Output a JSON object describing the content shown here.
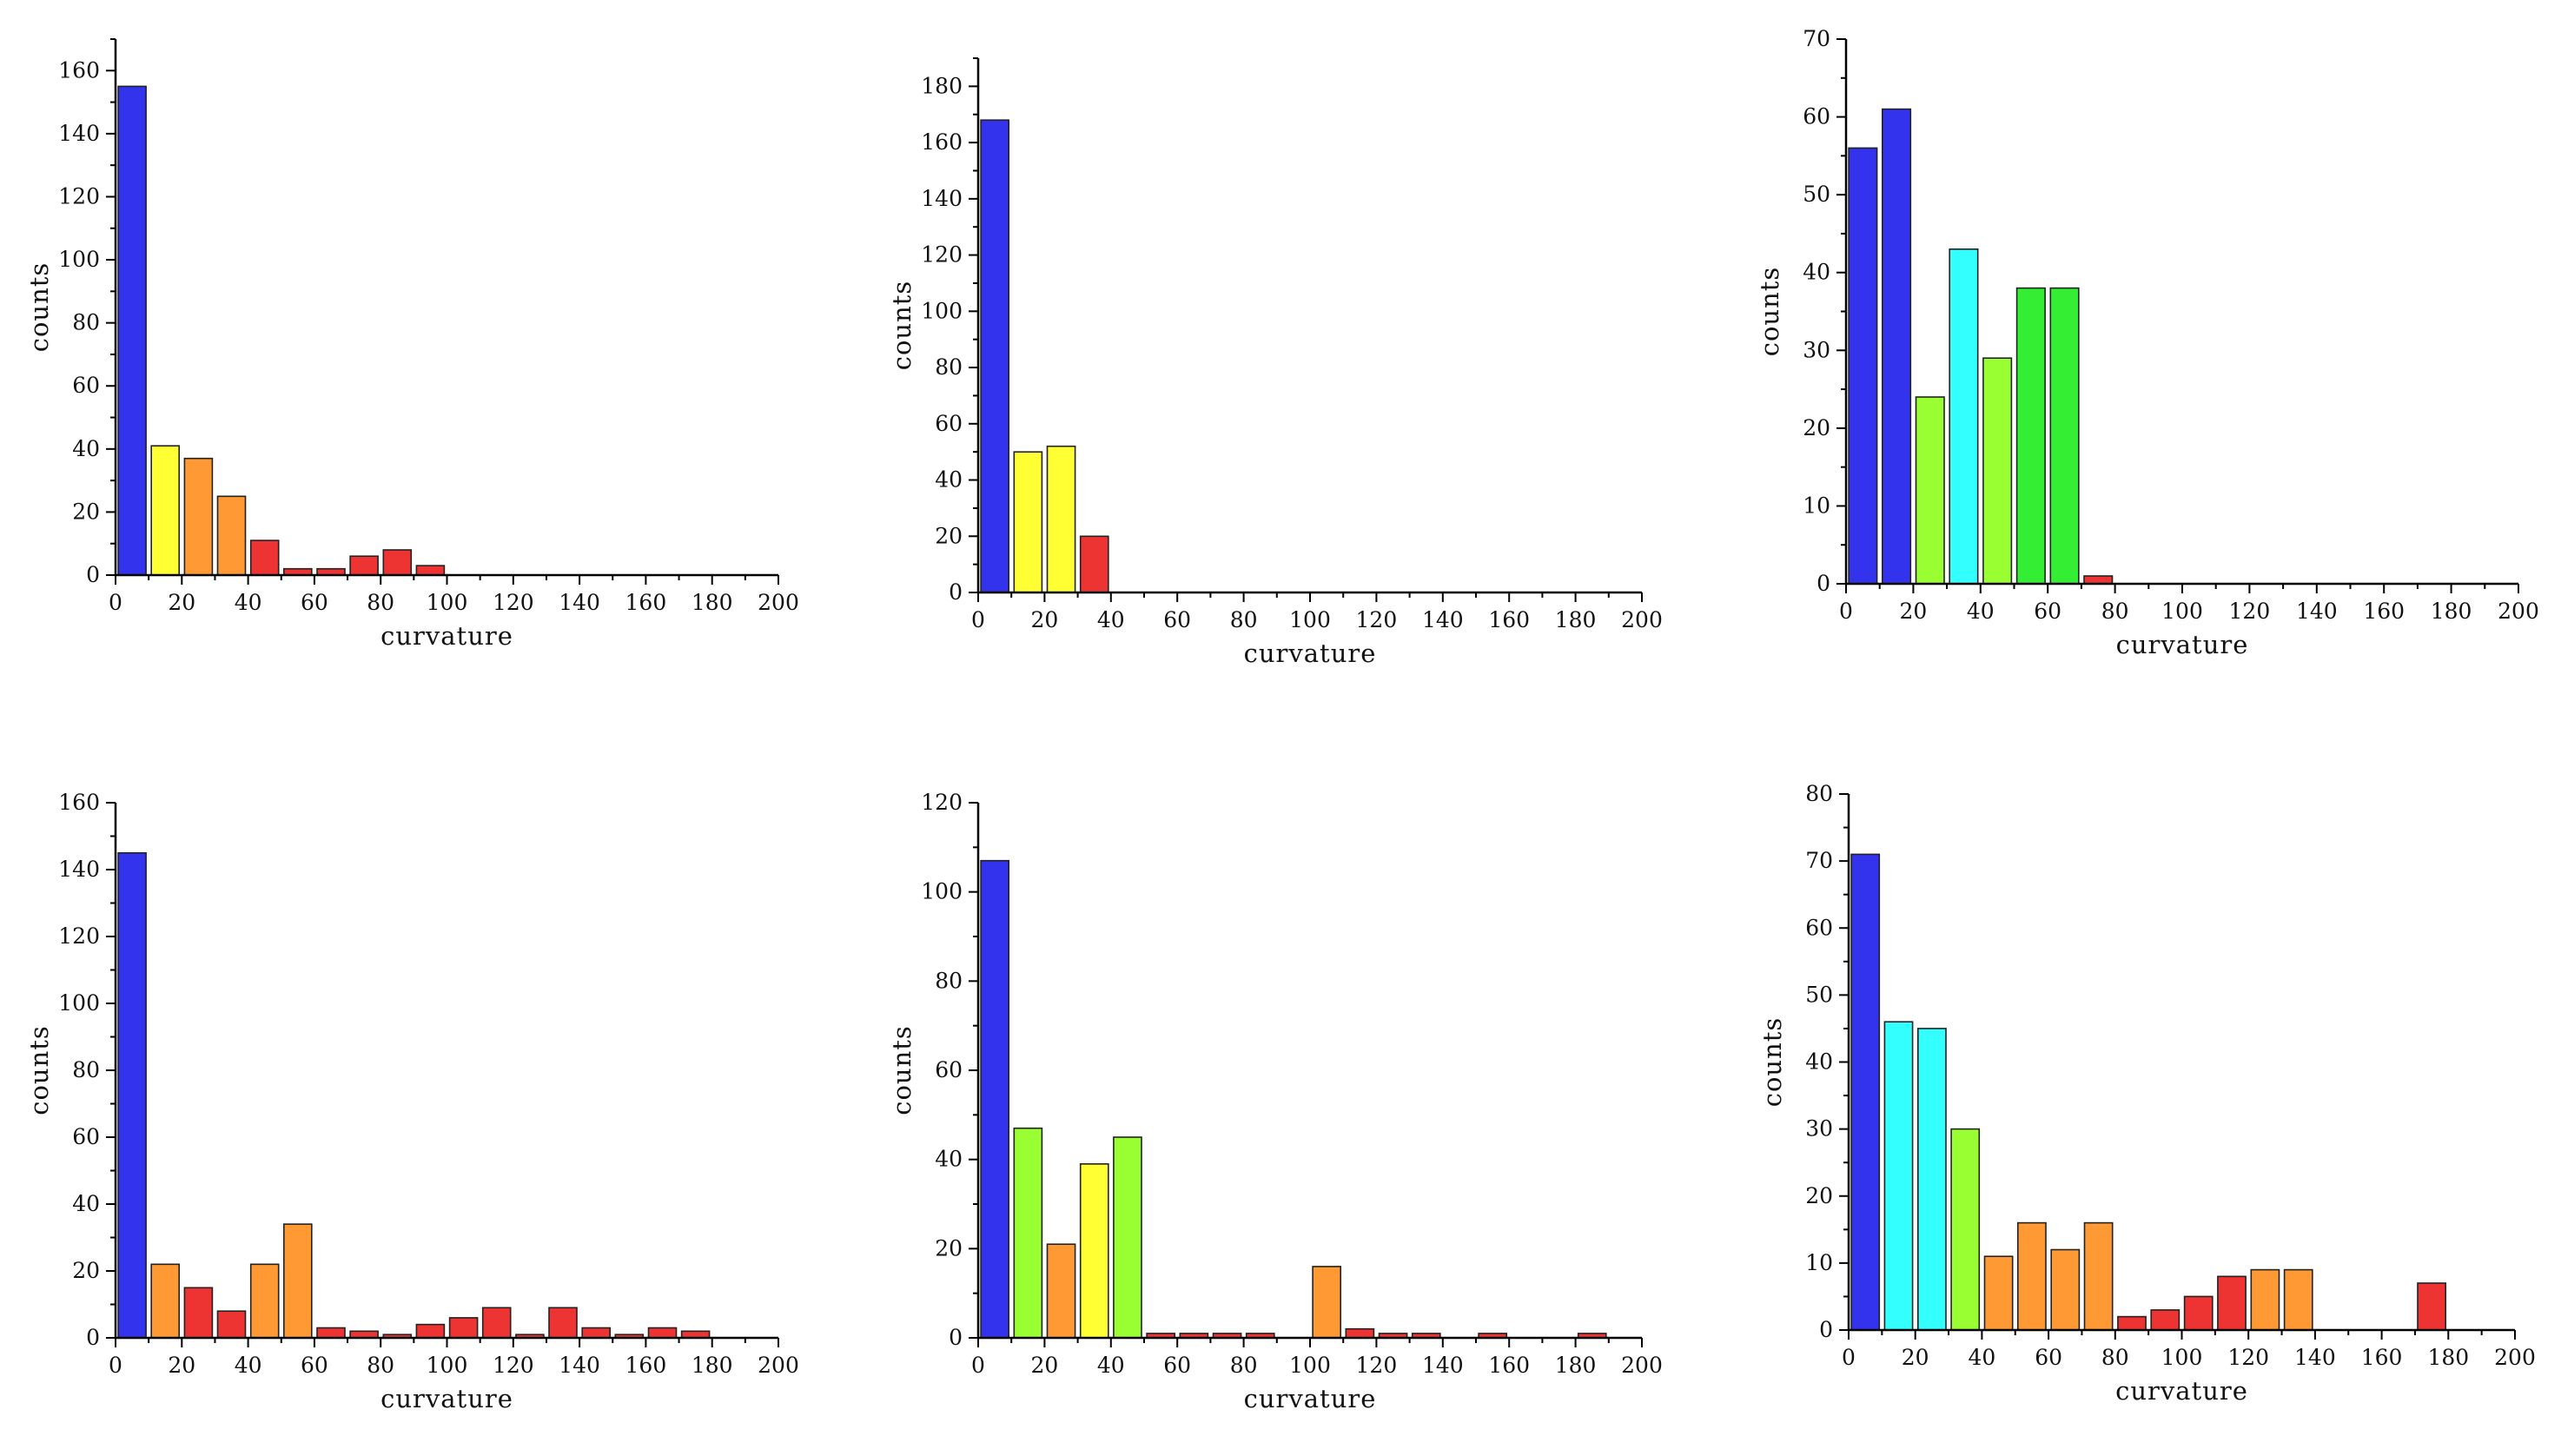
{
  "colors": {
    "blue": "#3333ee",
    "yellow": "#ffff33",
    "orange": "#ff9933",
    "red": "#ee3333",
    "cyan": "#33ffff",
    "lime": "#99ff33",
    "green": "#33ee33",
    "edge": "#222222",
    "axis": "#000000"
  },
  "chart_data": [
    {
      "type": "bar",
      "title": "",
      "xlabel": "curvature",
      "ylabel": "counts",
      "xlim": [
        0,
        200
      ],
      "ylim": [
        0,
        170
      ],
      "xticks": [
        0,
        20,
        40,
        60,
        80,
        100,
        120,
        140,
        160,
        180,
        200
      ],
      "yticks": [
        0,
        20,
        40,
        60,
        80,
        100,
        120,
        140,
        160
      ],
      "bin_width": 10,
      "bins": [
        0,
        10,
        20,
        30,
        40,
        50,
        60,
        70,
        80,
        90
      ],
      "values": [
        155,
        41,
        37,
        25,
        11,
        2,
        2,
        6,
        8,
        3
      ],
      "colors": [
        "blue",
        "yellow",
        "orange",
        "orange",
        "red",
        "red",
        "red",
        "red",
        "red",
        "red"
      ]
    },
    {
      "type": "bar",
      "title": "",
      "xlabel": "curvature",
      "ylabel": "counts",
      "xlim": [
        0,
        200
      ],
      "ylim": [
        0,
        190
      ],
      "xticks": [
        0,
        20,
        40,
        60,
        80,
        100,
        120,
        140,
        160,
        180,
        200
      ],
      "yticks": [
        0,
        20,
        40,
        60,
        80,
        100,
        120,
        140,
        160,
        180
      ],
      "bin_width": 10,
      "bins": [
        0,
        10,
        20,
        30
      ],
      "values": [
        168,
        50,
        52,
        20
      ],
      "colors": [
        "blue",
        "yellow",
        "yellow",
        "red"
      ]
    },
    {
      "type": "bar",
      "title": "",
      "xlabel": "curvature",
      "ylabel": "counts",
      "xlim": [
        0,
        200
      ],
      "ylim": [
        0,
        70
      ],
      "xticks": [
        0,
        20,
        40,
        60,
        80,
        100,
        120,
        140,
        160,
        180,
        200
      ],
      "yticks": [
        0,
        10,
        20,
        30,
        40,
        50,
        60,
        70
      ],
      "bin_width": 10,
      "bins": [
        0,
        10,
        20,
        30,
        40,
        50,
        60,
        70
      ],
      "values": [
        56,
        61,
        24,
        43,
        29,
        38,
        38,
        1
      ],
      "colors": [
        "blue",
        "blue",
        "lime",
        "cyan",
        "lime",
        "green",
        "green",
        "red"
      ]
    },
    {
      "type": "bar",
      "title": "",
      "xlabel": "curvature",
      "ylabel": "counts",
      "xlim": [
        0,
        200
      ],
      "ylim": [
        0,
        160
      ],
      "xticks": [
        0,
        20,
        40,
        60,
        80,
        100,
        120,
        140,
        160,
        180,
        200
      ],
      "yticks": [
        0,
        20,
        40,
        60,
        80,
        100,
        120,
        140,
        160
      ],
      "bin_width": 10,
      "bins": [
        0,
        10,
        20,
        30,
        40,
        50,
        60,
        70,
        80,
        90,
        100,
        110,
        120,
        130,
        140,
        150,
        160,
        170
      ],
      "values": [
        145,
        22,
        15,
        8,
        22,
        34,
        3,
        2,
        1,
        4,
        6,
        9,
        1,
        9,
        3,
        1,
        3,
        2
      ],
      "colors": [
        "blue",
        "orange",
        "red",
        "red",
        "orange",
        "orange",
        "red",
        "red",
        "red",
        "red",
        "red",
        "red",
        "red",
        "red",
        "red",
        "red",
        "red",
        "red"
      ]
    },
    {
      "type": "bar",
      "title": "",
      "xlabel": "curvature",
      "ylabel": "counts",
      "xlim": [
        0,
        200
      ],
      "ylim": [
        0,
        120
      ],
      "xticks": [
        0,
        20,
        40,
        60,
        80,
        100,
        120,
        140,
        160,
        180,
        200
      ],
      "yticks": [
        0,
        20,
        40,
        60,
        80,
        100,
        120
      ],
      "bin_width": 10,
      "bins": [
        0,
        10,
        20,
        30,
        40,
        50,
        60,
        70,
        80,
        100,
        110,
        120,
        130,
        150,
        180
      ],
      "values": [
        107,
        47,
        21,
        39,
        45,
        1,
        1,
        1,
        1,
        16,
        2,
        1,
        1,
        1,
        1
      ],
      "colors": [
        "blue",
        "lime",
        "orange",
        "yellow",
        "lime",
        "red",
        "red",
        "red",
        "red",
        "orange",
        "red",
        "red",
        "red",
        "red",
        "red"
      ]
    },
    {
      "type": "bar",
      "title": "",
      "xlabel": "curvature",
      "ylabel": "counts",
      "xlim": [
        0,
        200
      ],
      "ylim": [
        0,
        80
      ],
      "xticks": [
        0,
        20,
        40,
        60,
        80,
        100,
        120,
        140,
        160,
        180,
        200
      ],
      "yticks": [
        0,
        10,
        20,
        30,
        40,
        50,
        60,
        70,
        80
      ],
      "bin_width": 10,
      "bins": [
        0,
        10,
        20,
        30,
        40,
        50,
        60,
        70,
        80,
        90,
        100,
        110,
        120,
        130,
        170
      ],
      "values": [
        71,
        46,
        45,
        30,
        11,
        16,
        12,
        16,
        2,
        3,
        5,
        8,
        9,
        9,
        7
      ],
      "colors": [
        "blue",
        "cyan",
        "cyan",
        "lime",
        "orange",
        "orange",
        "orange",
        "orange",
        "red",
        "red",
        "red",
        "red",
        "orange",
        "orange",
        "red"
      ]
    }
  ]
}
